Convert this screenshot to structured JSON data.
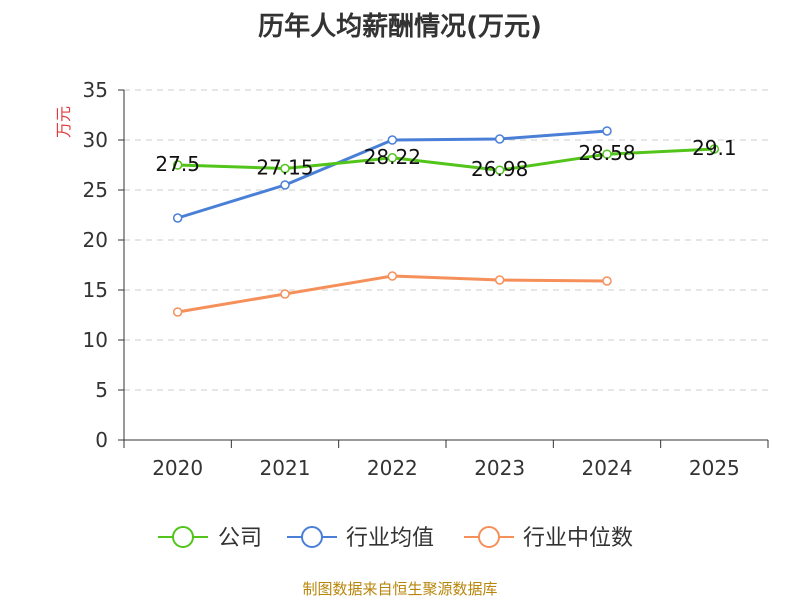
{
  "chart_data": {
    "type": "line",
    "title": "历年人均薪酬情况(万元)",
    "ylabel": "万元",
    "xlabel": "",
    "categories": [
      "2020",
      "2021",
      "2022",
      "2023",
      "2024",
      "2025"
    ],
    "ylim": [
      0,
      35
    ],
    "yticks": [
      0,
      5,
      10,
      15,
      20,
      25,
      30,
      35
    ],
    "grid": true,
    "legend": "bottom",
    "series": [
      {
        "name": "公司",
        "color": "#52c41a",
        "values": [
          27.5,
          27.15,
          28.22,
          26.98,
          28.58,
          29.1
        ],
        "labels": [
          "27.5",
          "27.15",
          "28.22",
          "26.98",
          "28.58",
          "29.1"
        ]
      },
      {
        "name": "行业均值",
        "color": "#4a7fd8",
        "values": [
          22.2,
          25.5,
          30.0,
          30.1,
          30.9,
          null
        ]
      },
      {
        "name": "行业中位数",
        "color": "#f5905a",
        "values": [
          12.8,
          14.6,
          16.4,
          16.0,
          15.9,
          null
        ]
      }
    ]
  },
  "source": "制图数据来自恒生聚源数据库"
}
